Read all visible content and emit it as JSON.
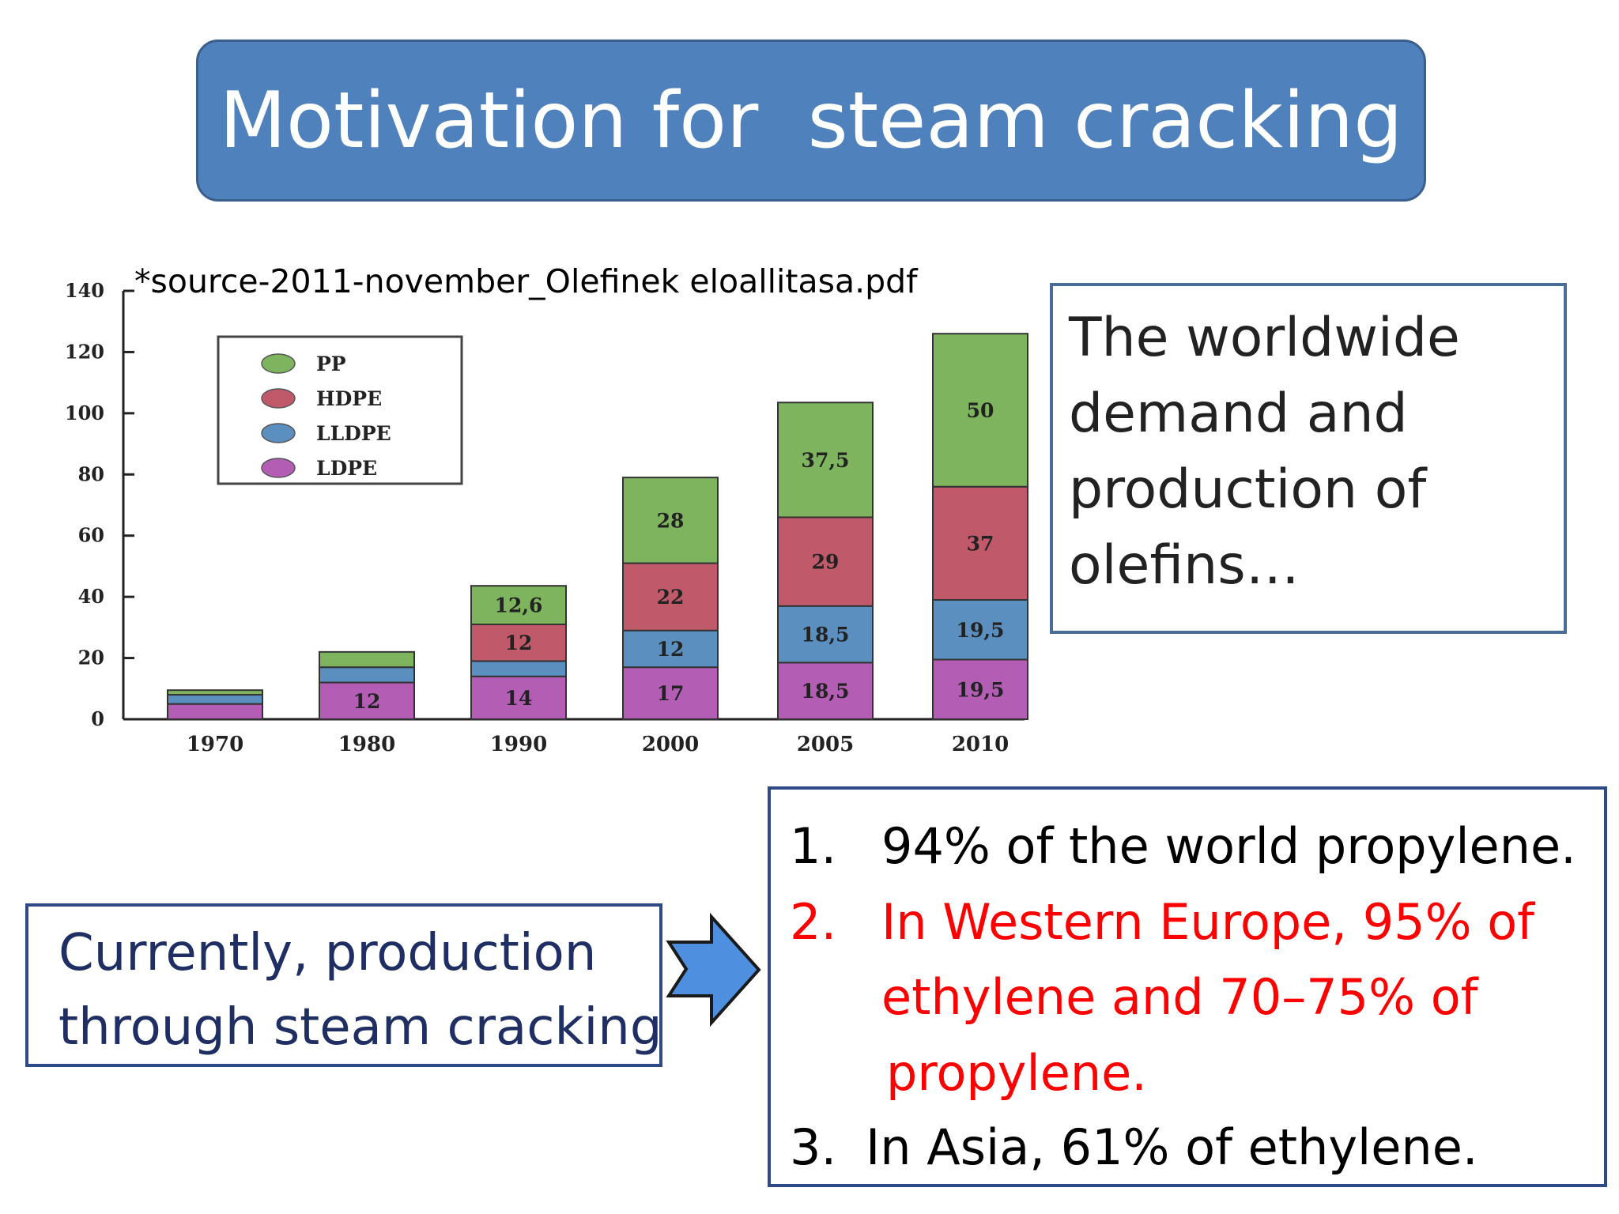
{
  "slide": {
    "title": "Motivation for  steam cracking",
    "source": "*source-2011-november_Olefinek eloallitasa.pdf",
    "side_text_lines": [
      "The worldwide",
      "demand and",
      "production of",
      "olefins…"
    ],
    "left_text_lines": [
      "Currently, production",
      "through steam cracking"
    ],
    "list": [
      {
        "number": "1.",
        "lines": [
          "94% of the world propylene."
        ],
        "color": "#222222"
      },
      {
        "number": "2.",
        "lines": [
          "In Western Europe, 95% of",
          "ethylene and 70–75% of",
          "propylene."
        ],
        "color": "#ff0000"
      },
      {
        "number": "3.",
        "lines": [
          "In Asia, 61% of ethylene."
        ],
        "color": "#222222"
      }
    ],
    "colors": {
      "title_bg": "#4f81bd",
      "arrow_fill": "#4f8fe0",
      "left_text": "#1f2e63",
      "highlight": "#ff0000"
    },
    "arrow_icon": "block-arrow-right-icon"
  },
  "chart_data": {
    "type": "bar",
    "stacked": true,
    "categories": [
      "1970",
      "1980",
      "1990",
      "2000",
      "2005",
      "2010"
    ],
    "series": [
      {
        "name": "LDPE",
        "color": "#b35db4",
        "values": [
          5,
          12,
          14,
          17,
          18.5,
          19.5
        ],
        "labels": [
          "",
          "12",
          "14",
          "17",
          "18,5",
          "19,5"
        ]
      },
      {
        "name": "LLDPE",
        "color": "#5b8fbf",
        "values": [
          3,
          5,
          5,
          12,
          18.5,
          19.5
        ],
        "labels": [
          "",
          "",
          "",
          "12",
          "18,5",
          "19,5"
        ]
      },
      {
        "name": "HDPE",
        "color": "#c05a6a",
        "values": [
          0,
          0,
          12,
          22,
          29,
          37
        ],
        "labels": [
          "",
          "",
          "12",
          "22",
          "29",
          "37"
        ]
      },
      {
        "name": "PP",
        "color": "#7fb45f",
        "values": [
          1.5,
          5,
          12.6,
          28,
          37.5,
          50
        ],
        "labels": [
          "",
          "",
          "12,6",
          "28",
          "37,5",
          "50"
        ]
      }
    ],
    "legend_order": [
      "PP",
      "HDPE",
      "LLDPE",
      "LDPE"
    ],
    "legend_position": "top-left",
    "yticks": [
      "0",
      "20",
      "40",
      "60",
      "80",
      "100",
      "120",
      "140"
    ],
    "ylim": [
      0,
      140
    ],
    "title": "",
    "xlabel": "",
    "ylabel": "",
    "grid": false
  }
}
